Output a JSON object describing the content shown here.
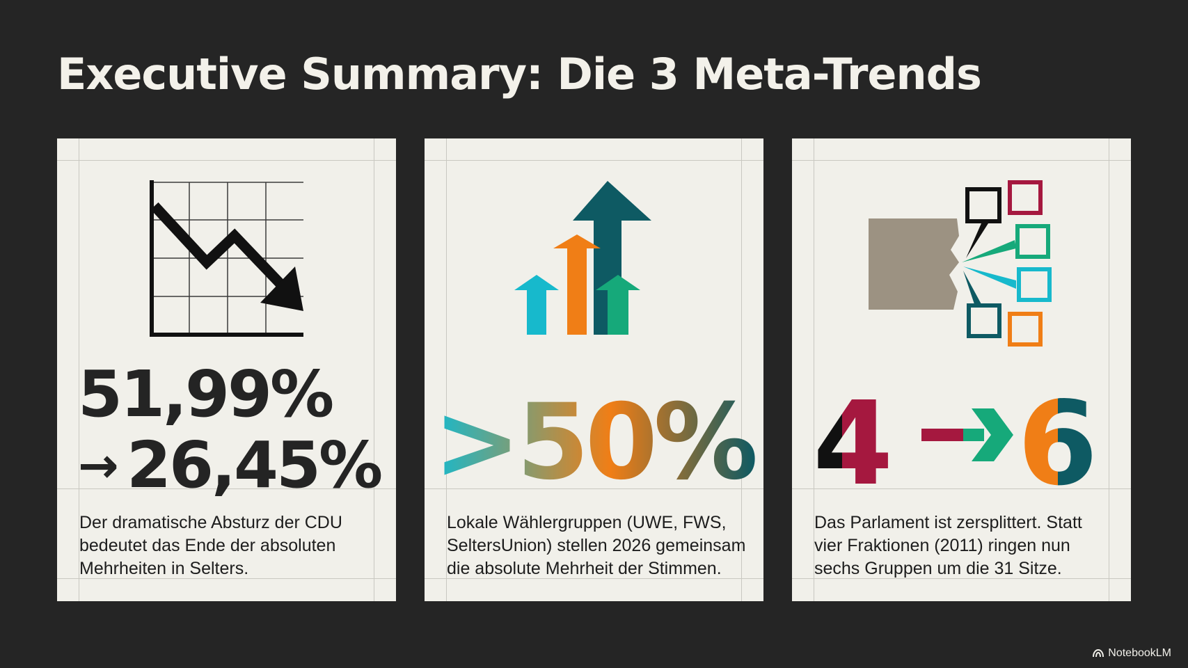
{
  "title": "Executive Summary: Die 3 Meta-Trends",
  "cards": [
    {
      "illustration": "falling-line-chart-icon",
      "stat_from": "51,99%",
      "stat_arrow": "→",
      "stat_to": "26,45%",
      "text": "Der dramatische Absturz der CDU bedeutet das Ende der absoluten Mehrheiten in Selters."
    },
    {
      "illustration": "rising-arrows-icon",
      "stat": ">50%",
      "text": "Lokale Wählergruppen (UWE, FWS, SeltersUnion) stellen 2026 gemeinsam die absolute Mehrheit der Stimmen."
    },
    {
      "illustration": "fragmentation-icon",
      "stat_from": "4",
      "stat_to": "6",
      "text": "Das Parlament ist zersplittert. Statt vier Fraktionen (2011) ringen nun sechs Gruppen um die 31 Sitze."
    }
  ],
  "colors": {
    "background": "#252525",
    "card": "#f1f0ea",
    "teal_dark": "#0e5a63",
    "orange": "#f07e16",
    "cyan": "#17b9cc",
    "green": "#16a97a",
    "crimson": "#a5183f",
    "taupe": "#9c9282"
  },
  "footer": {
    "logo_text": "NotebookLM"
  }
}
